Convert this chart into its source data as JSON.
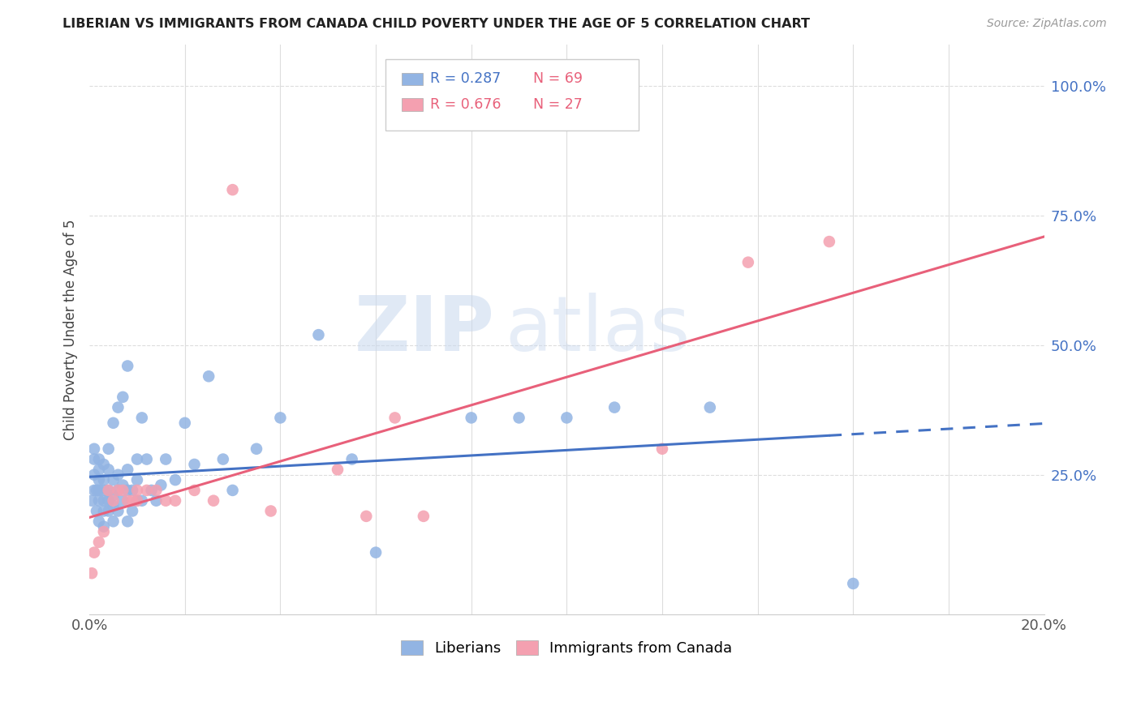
{
  "title": "LIBERIAN VS IMMIGRANTS FROM CANADA CHILD POVERTY UNDER THE AGE OF 5 CORRELATION CHART",
  "source": "Source: ZipAtlas.com",
  "ylabel": "Child Poverty Under the Age of 5",
  "xlim": [
    0.0,
    0.2
  ],
  "ylim": [
    -0.02,
    1.08
  ],
  "yticks": [
    0.0,
    0.25,
    0.5,
    0.75,
    1.0
  ],
  "ytick_labels": [
    "",
    "25.0%",
    "50.0%",
    "75.0%",
    "100.0%"
  ],
  "xticks": [
    0.0,
    0.02,
    0.04,
    0.06,
    0.08,
    0.1,
    0.12,
    0.14,
    0.16,
    0.18,
    0.2
  ],
  "xtick_labels": [
    "0.0%",
    "",
    "",
    "",
    "",
    "",
    "",
    "",
    "",
    "",
    "20.0%"
  ],
  "liberian_color": "#92b4e3",
  "canada_color": "#f4a0b0",
  "liberian_line_color": "#4472c4",
  "canada_line_color": "#e8607a",
  "liberian_R": 0.287,
  "liberian_N": 69,
  "canada_R": 0.676,
  "canada_N": 27,
  "watermark_zip": "ZIP",
  "watermark_atlas": "atlas",
  "lib_x": [
    0.0005,
    0.001,
    0.001,
    0.001,
    0.001,
    0.0015,
    0.0015,
    0.002,
    0.002,
    0.002,
    0.002,
    0.002,
    0.002,
    0.003,
    0.003,
    0.003,
    0.003,
    0.003,
    0.003,
    0.004,
    0.004,
    0.004,
    0.004,
    0.004,
    0.005,
    0.005,
    0.005,
    0.005,
    0.005,
    0.006,
    0.006,
    0.006,
    0.006,
    0.007,
    0.007,
    0.007,
    0.008,
    0.008,
    0.008,
    0.008,
    0.009,
    0.009,
    0.01,
    0.01,
    0.01,
    0.011,
    0.011,
    0.012,
    0.013,
    0.014,
    0.015,
    0.016,
    0.018,
    0.02,
    0.022,
    0.025,
    0.028,
    0.03,
    0.035,
    0.04,
    0.048,
    0.055,
    0.06,
    0.08,
    0.09,
    0.1,
    0.11,
    0.13,
    0.16
  ],
  "lib_y": [
    0.2,
    0.22,
    0.25,
    0.28,
    0.3,
    0.18,
    0.22,
    0.16,
    0.2,
    0.22,
    0.24,
    0.26,
    0.28,
    0.15,
    0.18,
    0.2,
    0.22,
    0.24,
    0.27,
    0.18,
    0.2,
    0.22,
    0.26,
    0.3,
    0.16,
    0.19,
    0.21,
    0.24,
    0.35,
    0.18,
    0.22,
    0.25,
    0.38,
    0.2,
    0.23,
    0.4,
    0.16,
    0.22,
    0.26,
    0.46,
    0.18,
    0.22,
    0.2,
    0.24,
    0.28,
    0.2,
    0.36,
    0.28,
    0.22,
    0.2,
    0.23,
    0.28,
    0.24,
    0.35,
    0.27,
    0.44,
    0.28,
    0.22,
    0.3,
    0.36,
    0.52,
    0.28,
    0.1,
    0.36,
    0.36,
    0.36,
    0.38,
    0.38,
    0.04
  ],
  "can_x": [
    0.0005,
    0.001,
    0.002,
    0.003,
    0.004,
    0.005,
    0.006,
    0.007,
    0.008,
    0.009,
    0.01,
    0.01,
    0.012,
    0.014,
    0.016,
    0.018,
    0.022,
    0.026,
    0.03,
    0.038,
    0.052,
    0.058,
    0.064,
    0.07,
    0.12,
    0.138,
    0.155
  ],
  "can_y": [
    0.06,
    0.1,
    0.12,
    0.14,
    0.22,
    0.2,
    0.22,
    0.22,
    0.2,
    0.2,
    0.2,
    0.22,
    0.22,
    0.22,
    0.2,
    0.2,
    0.22,
    0.2,
    0.8,
    0.18,
    0.26,
    0.17,
    0.36,
    0.17,
    0.3,
    0.66,
    0.7
  ]
}
